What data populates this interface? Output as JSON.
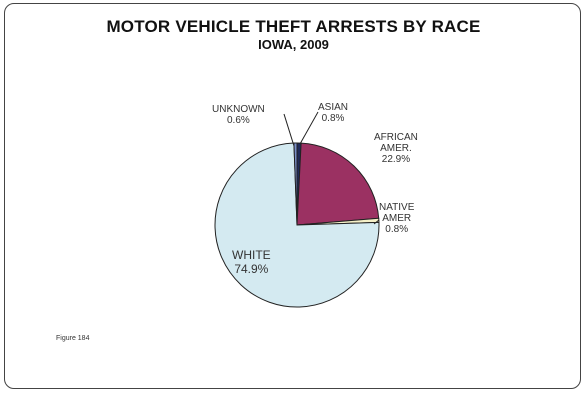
{
  "chart_data": {
    "type": "pie",
    "title": "MOTOR VEHICLE THEFT ARRESTS BY RACE",
    "subtitle": "IOWA, 2009",
    "slices": [
      {
        "label": "ASIAN",
        "value": 0.8,
        "value_label": "0.8%",
        "color": "#1f2a5a"
      },
      {
        "label": "AFRICAN AMER.",
        "label_lines": [
          "AFRICAN",
          "AMER."
        ],
        "value": 22.9,
        "value_label": "22.9%",
        "color": "#9b3162"
      },
      {
        "label": "NATIVE AMER",
        "label_lines": [
          "NATIVE",
          "AMER"
        ],
        "value": 0.8,
        "value_label": "0.8%",
        "color": "#f5f0c8"
      },
      {
        "label": "WHITE",
        "value": 74.9,
        "value_label": "74.9%",
        "color": "#d4eaf1"
      },
      {
        "label": "UNKNOWN",
        "value": 0.6,
        "value_label": "0.6%",
        "color": "#7a8fc9"
      }
    ]
  },
  "footnote": "Figure 184"
}
